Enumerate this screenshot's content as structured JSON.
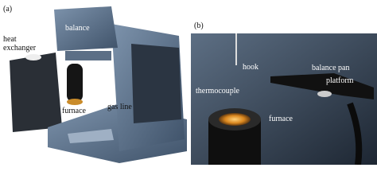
{
  "panel_a": {
    "label": "(a)",
    "annotations": {
      "balance": "balance",
      "heat_exchanger": [
        "heat",
        "exchanger"
      ],
      "gas_line": "gas line",
      "furnace": "furnace"
    }
  },
  "panel_b": {
    "label": "(b)",
    "annotations": {
      "hook": "hook",
      "thermocouple": "thermocouple",
      "furnace": "furnace",
      "balance_pan": "balance pan",
      "platform": "platform"
    }
  }
}
